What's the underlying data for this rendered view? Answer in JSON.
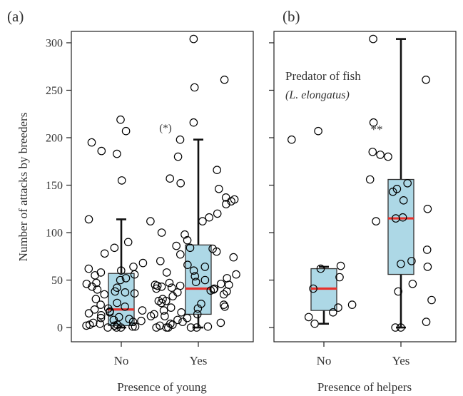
{
  "chart_data": [
    {
      "panel_label": "(a)",
      "type": "box",
      "xlabel": "Presence of young",
      "ylabel": "Number of attacks by breeders",
      "ylim": [
        -15,
        312
      ],
      "yticks": [
        0,
        50,
        100,
        150,
        200,
        250,
        300
      ],
      "categories": [
        "No",
        "Yes"
      ],
      "annotation": "(*)",
      "colors": {
        "box": "#add8e6",
        "median": "#e8302b"
      },
      "boxes": [
        {
          "category": "No",
          "q1": 2,
          "median": 19,
          "q3": 57,
          "whisker_low": 0,
          "whisker_high": 114
        },
        {
          "category": "Yes",
          "q1": 14,
          "median": 41,
          "q3": 87,
          "whisker_low": 0,
          "whisker_high": 198
        }
      ],
      "points": [
        {
          "category": "No",
          "values": [
            219,
            207,
            195,
            186,
            183,
            155,
            114,
            112,
            90,
            84,
            78,
            68,
            64,
            62,
            60,
            58,
            56,
            55,
            52,
            50,
            47,
            46,
            45,
            44,
            43,
            42,
            41,
            40,
            38,
            37,
            36,
            35,
            30,
            28,
            26,
            24,
            22,
            20,
            19,
            18,
            17,
            16,
            15,
            14,
            13,
            12,
            11,
            10,
            9,
            8,
            7,
            6,
            5,
            4,
            3,
            3,
            2,
            2,
            1,
            1,
            0,
            0,
            0,
            0
          ]
        },
        {
          "category": "Yes",
          "values": [
            304,
            261,
            253,
            216,
            198,
            180,
            166,
            157,
            152,
            146,
            137,
            135,
            133,
            130,
            120,
            116,
            112,
            100,
            98,
            92,
            86,
            84,
            83,
            80,
            77,
            74,
            70,
            66,
            64,
            60,
            58,
            56,
            54,
            52,
            50,
            48,
            47,
            46,
            45,
            44,
            43,
            42,
            41,
            40,
            39,
            38,
            37,
            35,
            33,
            30,
            28,
            26,
            25,
            24,
            22,
            21,
            20,
            18,
            16,
            14,
            12,
            10,
            8,
            6,
            5,
            4,
            3,
            2,
            1,
            0,
            0,
            0,
            0
          ]
        }
      ]
    },
    {
      "panel_label": "(b)",
      "type": "box",
      "xlabel": "Presence of helpers",
      "ylim": [
        -15,
        312
      ],
      "categories": [
        "No",
        "Yes"
      ],
      "annotation": "**",
      "inset_title": "Predator of fish",
      "inset_subtitle": "(L. elongatus)",
      "colors": {
        "box": "#add8e6",
        "median": "#e8302b"
      },
      "boxes": [
        {
          "category": "No",
          "q1": 18,
          "median": 41,
          "q3": 62,
          "whisker_low": 4,
          "whisker_high": 64
        },
        {
          "category": "Yes",
          "q1": 56,
          "median": 115,
          "q3": 156,
          "whisker_low": 0,
          "whisker_high": 304
        }
      ],
      "points": [
        {
          "category": "No",
          "values": [
            207,
            198,
            65,
            62,
            53,
            41,
            24,
            21,
            16,
            11,
            4
          ]
        },
        {
          "category": "Yes",
          "values": [
            304,
            261,
            216,
            185,
            182,
            180,
            156,
            152,
            146,
            143,
            134,
            125,
            116,
            115,
            112,
            82,
            70,
            67,
            64,
            46,
            38,
            29,
            6,
            0,
            0
          ]
        }
      ]
    }
  ]
}
